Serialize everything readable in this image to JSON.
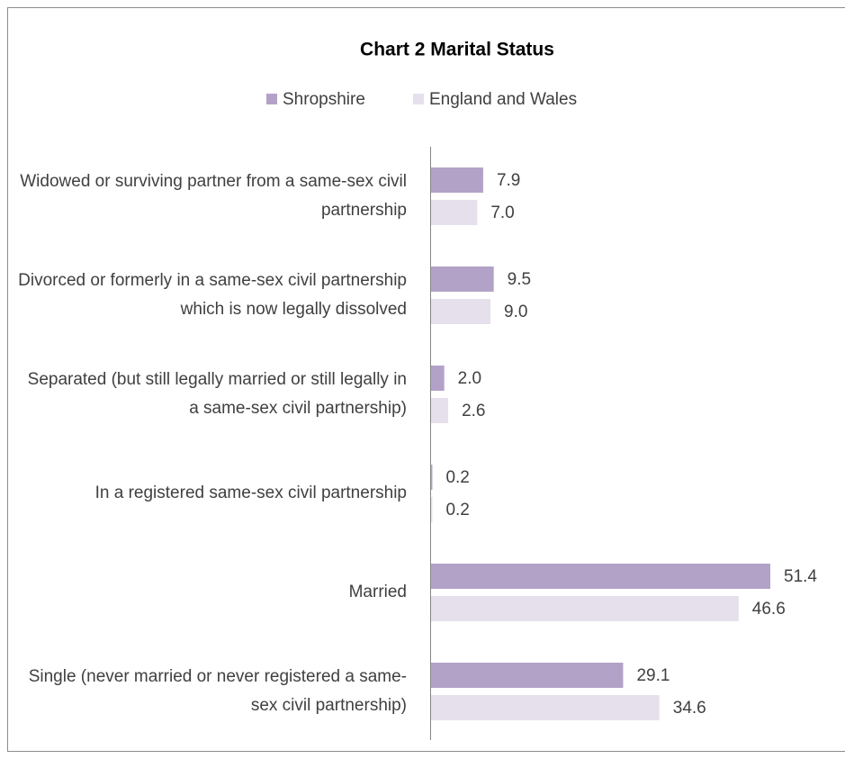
{
  "chart_data": {
    "type": "bar",
    "orientation": "horizontal",
    "title": "Chart 2 Marital Status",
    "categories": [
      "Widowed or surviving partner from a same-sex civil partnership",
      "Divorced or formerly in a same-sex civil partnership which is now legally dissolved",
      "Separated (but still legally married or still legally in a same-sex civil partnership)",
      "In a registered same-sex civil partnership",
      "Married",
      "Single (never married or never registered a same-sex civil partnership)"
    ],
    "series": [
      {
        "name": "Shropshire",
        "color": "#b3a2c7",
        "values": [
          7.9,
          9.5,
          2.0,
          0.2,
          51.4,
          29.1
        ],
        "value_labels": [
          "7.9",
          "9.5",
          "2.0",
          "0.2",
          "51.4",
          "29.1"
        ]
      },
      {
        "name": "England and Wales",
        "color": "#e6e0ec",
        "values": [
          7.0,
          9.0,
          2.6,
          0.2,
          46.6,
          34.6
        ],
        "value_labels": [
          "7.0",
          "9.0",
          "2.6",
          "0.2",
          "46.6",
          "34.6"
        ]
      }
    ]
  }
}
